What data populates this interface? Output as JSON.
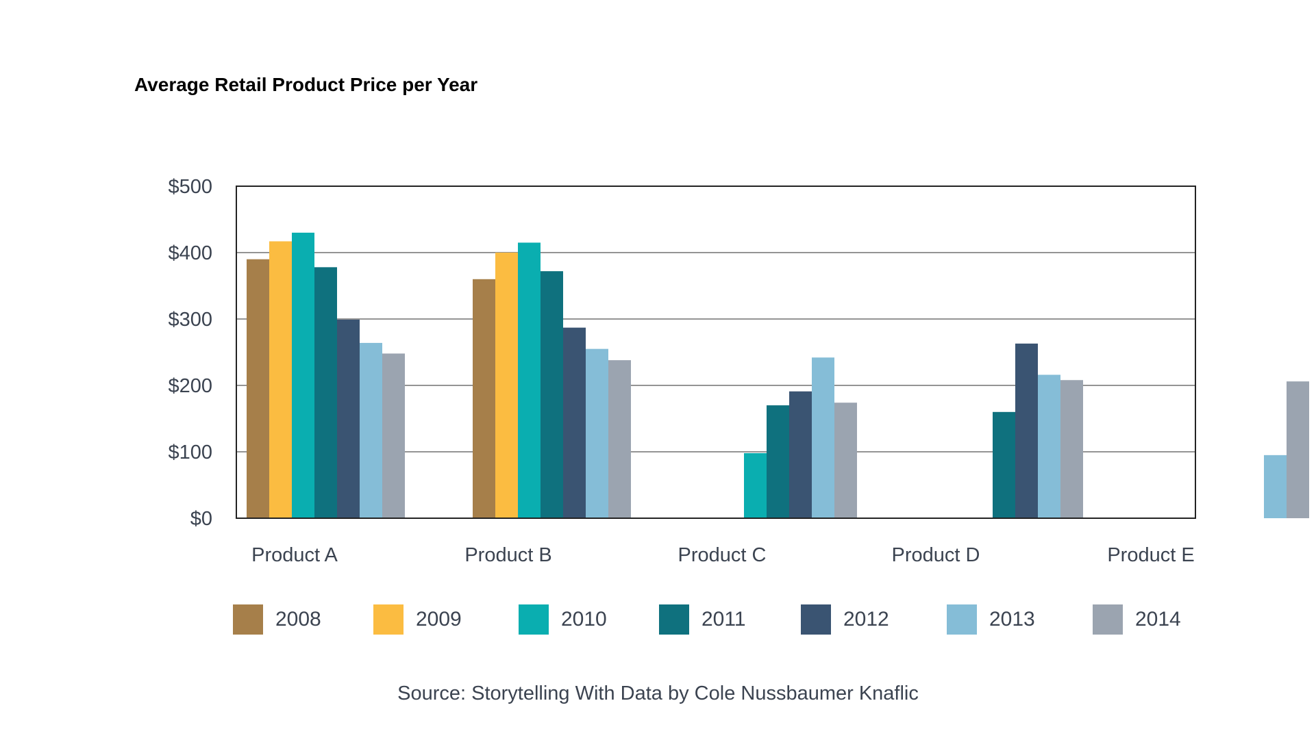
{
  "chart_data": {
    "type": "bar",
    "title": "Average Retail Product Price per Year",
    "xlabel": "",
    "ylabel": "",
    "ylim": [
      0,
      500
    ],
    "yticks": [
      0,
      100,
      200,
      300,
      400,
      500
    ],
    "ytick_labels": [
      "$0",
      "$100",
      "$200",
      "$300",
      "$400",
      "$500"
    ],
    "grid": true,
    "legend_position": "bottom",
    "categories": [
      "Product A",
      "Product B",
      "Product C",
      "Product D",
      "Product E"
    ],
    "series": [
      {
        "name": "2008",
        "color": "#a67f4a",
        "values": [
          390,
          360,
          null,
          null,
          null
        ]
      },
      {
        "name": "2009",
        "color": "#fbbc41",
        "values": [
          417,
          400,
          null,
          null,
          null
        ]
      },
      {
        "name": "2010",
        "color": "#0aaeb0",
        "values": [
          430,
          415,
          98,
          null,
          null
        ]
      },
      {
        "name": "2011",
        "color": "#0f717e",
        "values": [
          378,
          372,
          170,
          160,
          null
        ]
      },
      {
        "name": "2012",
        "color": "#3a5472",
        "values": [
          299,
          287,
          191,
          263,
          null
        ]
      },
      {
        "name": "2013",
        "color": "#85bdd7",
        "values": [
          264,
          255,
          242,
          216,
          95
        ]
      },
      {
        "name": "2014",
        "color": "#9ba4b0",
        "values": [
          248,
          238,
          174,
          208,
          206
        ]
      }
    ]
  },
  "source": "Source: Storytelling With Data by Cole Nussbaumer Knaflic"
}
